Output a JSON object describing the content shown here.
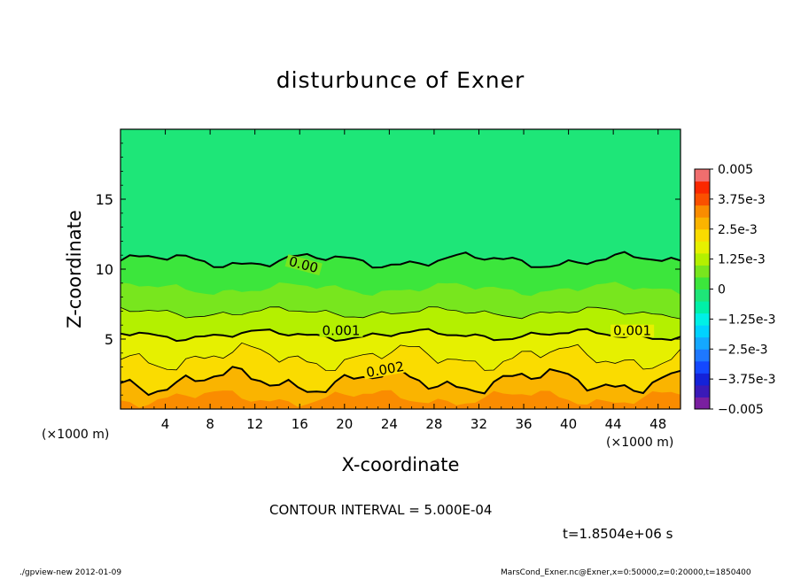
{
  "chart_data": {
    "type": "heatmap",
    "title": "disturbunce of Exner",
    "xlabel": "X-coordinate",
    "ylabel": "Z-coordinate",
    "x_unit": "(×1000 m)",
    "y_unit": "(×1000 m)",
    "xlim": [
      0,
      50
    ],
    "ylim": [
      0,
      20
    ],
    "x_ticks": [
      4,
      8,
      12,
      16,
      20,
      24,
      28,
      32,
      36,
      40,
      44,
      48
    ],
    "y_ticks": [
      5,
      10,
      15
    ],
    "colorbar_labels": [
      "0.005",
      "3.75e-3",
      "2.5e-3",
      "1.25e-3",
      "0",
      "−1.25e-3",
      "−2.5e-3",
      "−3.75e-3",
      "−0.005"
    ],
    "colorbar_levels": [
      -0.005,
      -0.0045,
      -0.004,
      -0.0035,
      -0.003,
      -0.0025,
      -0.002,
      -0.0015,
      -0.001,
      -0.0005,
      0,
      0.0005,
      0.001,
      0.0015,
      0.002,
      0.0025,
      0.003,
      0.0035,
      0.004,
      0.0045,
      0.005
    ],
    "colorbar_colors": [
      "#7a1fa0",
      "#3a1ab8",
      "#1422d8",
      "#1448ff",
      "#1e78ff",
      "#14a8ff",
      "#00d2ff",
      "#00f0e6",
      "#00f0a8",
      "#1ee678",
      "#3ce63c",
      "#78e61e",
      "#b4f000",
      "#e6f000",
      "#fadc00",
      "#fab400",
      "#fa8c00",
      "#fa5000",
      "#fa2800",
      "#f06e6e"
    ],
    "contour_labels": [
      "0.00",
      "0.001",
      "0.001",
      "0.002"
    ],
    "contour_interval": "CONTOUR INTERVAL = 5.000E-04",
    "time": "t=1.8504e+06 s"
  },
  "footer": {
    "left": "./gpview-new   2012-01-09",
    "right": "MarsCond_Exner.nc@Exner,x=0:50000,z=0:20000,t=1850400"
  }
}
